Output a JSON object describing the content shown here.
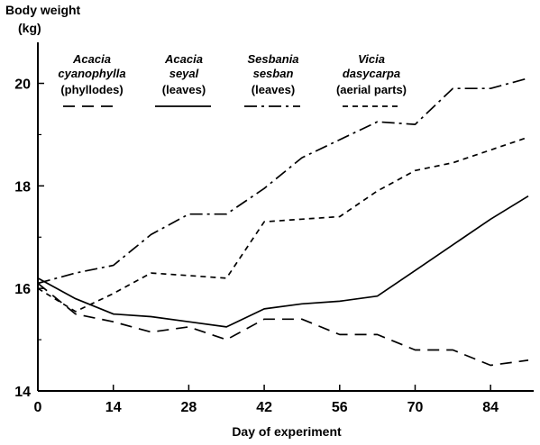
{
  "chart_data": {
    "type": "line",
    "title": "",
    "ylabel_line1": "Body weight",
    "ylabel_line2": "(kg)",
    "xlabel": "Day of experiment",
    "xlim": [
      0,
      92
    ],
    "ylim": [
      14,
      20.8
    ],
    "x_ticks": [
      0,
      14,
      28,
      42,
      56,
      70,
      84
    ],
    "y_ticks": [
      14,
      16,
      18,
      20
    ],
    "grid": false,
    "legend_position": "top",
    "series": [
      {
        "name_line1": "Acacia",
        "name_line2": "cyanophylla",
        "name_line3": "(phyllodes)",
        "style": "long-dash",
        "x": [
          0,
          7,
          14,
          21,
          28,
          35,
          42,
          49,
          56,
          63,
          70,
          77,
          84,
          91
        ],
        "y": [
          16.1,
          15.5,
          15.35,
          15.15,
          15.25,
          15.0,
          15.4,
          15.4,
          15.1,
          15.1,
          14.8,
          14.8,
          14.5,
          14.6
        ]
      },
      {
        "name_line1": "Acacia",
        "name_line2": "seyal",
        "name_line3": "(leaves)",
        "style": "solid",
        "x": [
          0,
          7,
          14,
          21,
          28,
          35,
          42,
          49,
          56,
          63,
          70,
          77,
          84,
          91
        ],
        "y": [
          16.2,
          15.8,
          15.5,
          15.45,
          15.35,
          15.25,
          15.6,
          15.7,
          15.75,
          15.85,
          16.35,
          16.85,
          17.35,
          17.8
        ]
      },
      {
        "name_line1": "Sesbania",
        "name_line2": "sesban",
        "name_line3": "(leaves)",
        "style": "dash-dot",
        "x": [
          0,
          7,
          14,
          21,
          28,
          35,
          42,
          49,
          56,
          63,
          70,
          77,
          84,
          91
        ],
        "y": [
          16.1,
          16.3,
          16.45,
          17.05,
          17.45,
          17.45,
          17.95,
          18.55,
          18.9,
          19.25,
          19.2,
          19.9,
          19.9,
          20.1
        ]
      },
      {
        "name_line1": "Vicia",
        "name_line2": "dasycarpa",
        "name_line3": "(aerial parts)",
        "style": "short-dash",
        "x": [
          0,
          7,
          14,
          21,
          28,
          35,
          42,
          49,
          56,
          63,
          70,
          77,
          84,
          91
        ],
        "y": [
          16.0,
          15.55,
          15.9,
          16.3,
          16.25,
          16.2,
          17.3,
          17.35,
          17.4,
          17.9,
          18.3,
          18.45,
          18.7,
          18.95
        ]
      }
    ]
  }
}
